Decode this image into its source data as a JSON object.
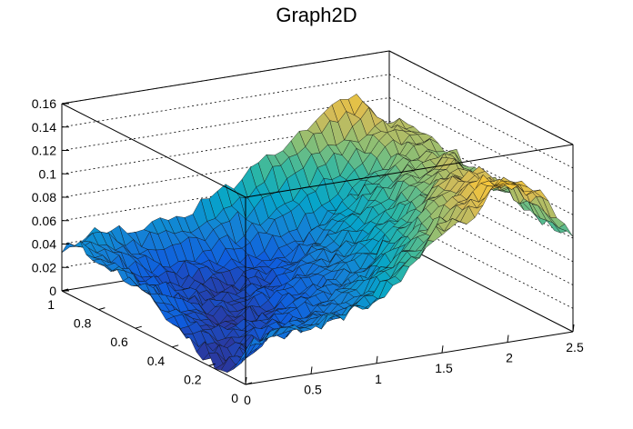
{
  "chart_data": {
    "type": "surface",
    "title": "Graph2D",
    "xlabel": "",
    "ylabel": "",
    "zlabel": "",
    "xlim": [
      0,
      2.5
    ],
    "ylim": [
      0,
      1
    ],
    "zlim": [
      0,
      0.16
    ],
    "x_ticks": [
      "0",
      "0.5",
      "1",
      "1.5",
      "2",
      "2.5"
    ],
    "y_ticks": [
      "0",
      "0.2",
      "0.4",
      "0.6",
      "0.8",
      "1"
    ],
    "z_ticks": [
      "0",
      "0.02",
      "0.04",
      "0.06",
      "0.08",
      "0.1",
      "0.12",
      "0.14",
      "0.16"
    ],
    "z_grid": true,
    "palette": [
      "#352a87",
      "#0f5cdd",
      "#1481d6",
      "#06a4ca",
      "#2eb7a4",
      "#87bf77",
      "#d1bb59",
      "#fec832",
      "#f9fb0e"
    ],
    "surface_profile": {
      "x": [
        0,
        0.25,
        0.5,
        0.75,
        1.0,
        1.25,
        1.5,
        1.75,
        2.0,
        2.25,
        2.5
      ],
      "y": [
        0,
        0.1,
        0.2,
        0.3,
        0.4,
        0.5,
        0.6,
        0.7,
        0.8,
        0.9,
        1.0
      ],
      "z": [
        [
          0.03,
          0.045,
          0.04,
          0.045,
          0.05,
          0.075,
          0.105,
          0.115,
          0.14,
          0.12,
          0.08
        ],
        [
          0.005,
          0.02,
          0.03,
          0.035,
          0.045,
          0.065,
          0.09,
          0.11,
          0.13,
          0.12,
          0.08
        ],
        [
          0.005,
          0.01,
          0.02,
          0.025,
          0.035,
          0.05,
          0.075,
          0.1,
          0.12,
          0.115,
          0.085
        ],
        [
          0.01,
          0.008,
          0.015,
          0.02,
          0.03,
          0.04,
          0.06,
          0.09,
          0.115,
          0.115,
          0.09
        ],
        [
          0.02,
          0.01,
          0.01,
          0.015,
          0.025,
          0.035,
          0.05,
          0.075,
          0.1,
          0.11,
          0.09
        ],
        [
          0.03,
          0.015,
          0.008,
          0.012,
          0.02,
          0.03,
          0.045,
          0.065,
          0.09,
          0.11,
          0.095
        ],
        [
          0.035,
          0.02,
          0.01,
          0.01,
          0.015,
          0.025,
          0.04,
          0.06,
          0.085,
          0.105,
          0.1
        ],
        [
          0.04,
          0.025,
          0.015,
          0.01,
          0.012,
          0.02,
          0.035,
          0.055,
          0.08,
          0.1,
          0.1
        ],
        [
          0.04,
          0.025,
          0.015,
          0.01,
          0.01,
          0.018,
          0.03,
          0.05,
          0.075,
          0.1,
          0.105
        ],
        [
          0.045,
          0.035,
          0.025,
          0.02,
          0.025,
          0.035,
          0.05,
          0.07,
          0.09,
          0.11,
          0.105
        ],
        [
          0.035,
          0.05,
          0.04,
          0.045,
          0.05,
          0.065,
          0.08,
          0.1,
          0.115,
          0.13,
          0.085
        ]
      ]
    }
  }
}
